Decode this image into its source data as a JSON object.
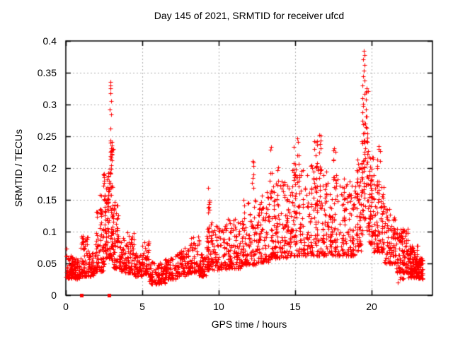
{
  "chart_data": {
    "type": "scatter",
    "title": "Day 145 of 2021, SRMTID for receiver ufcd",
    "xlabel": "GPS time / hours",
    "ylabel": "SRMTID / TECUs",
    "xlim": [
      0,
      24
    ],
    "ylim": [
      0,
      0.4
    ],
    "xticks": [
      0,
      5,
      10,
      15,
      20
    ],
    "yticks": [
      0,
      0.05,
      0.1,
      0.15,
      0.2,
      0.25,
      0.3,
      0.35,
      0.4
    ],
    "xtick_labels": [
      "0",
      "5",
      "10",
      "15",
      "20"
    ],
    "ytick_labels": [
      "0",
      "0.05",
      "0.1",
      "0.15",
      "0.2",
      "0.25",
      "0.3",
      "0.35",
      "0.4"
    ],
    "grid": true,
    "grid_style": "dotted",
    "colors": {
      "marker": "#ff0000",
      "grid": "#b0b0b0",
      "axis": "#000000",
      "background": "#ffffff",
      "text": "#000000"
    },
    "series": [
      {
        "name": "srmtid-points",
        "marker": "+",
        "color": "#ff0000",
        "envelope_format": [
          "t_start_h",
          "t_end_h",
          "count",
          "y_min_tecu",
          "y_max_tecu",
          "skew_power"
        ],
        "envelope": [
          [
            0.0,
            0.5,
            70,
            0.027,
            0.062,
            1.6
          ],
          [
            0.5,
            0.95,
            60,
            0.026,
            0.058,
            1.6
          ],
          [
            0.95,
            1.45,
            70,
            0.03,
            0.096,
            1.8
          ],
          [
            1.05,
            1.2,
            5,
            0.08,
            0.097,
            1.0
          ],
          [
            1.45,
            1.95,
            60,
            0.03,
            0.07,
            1.7
          ],
          [
            1.95,
            2.45,
            70,
            0.038,
            0.135,
            1.8
          ],
          [
            2.2,
            2.3,
            5,
            0.12,
            0.158,
            1.0
          ],
          [
            2.45,
            2.8,
            75,
            0.048,
            0.195,
            1.4
          ],
          [
            2.8,
            3.1,
            80,
            0.055,
            0.25,
            1.5
          ],
          [
            3.1,
            3.5,
            65,
            0.042,
            0.15,
            1.8
          ],
          [
            3.5,
            4.0,
            60,
            0.035,
            0.092,
            1.7
          ],
          [
            4.0,
            4.45,
            55,
            0.035,
            0.1,
            1.8
          ],
          [
            4.45,
            5.0,
            60,
            0.03,
            0.066,
            1.6
          ],
          [
            5.0,
            5.45,
            55,
            0.033,
            0.085,
            1.8
          ],
          [
            5.45,
            6.5,
            95,
            0.018,
            0.052,
            1.4
          ],
          [
            6.5,
            7.2,
            70,
            0.025,
            0.06,
            1.5
          ],
          [
            7.2,
            8.0,
            80,
            0.03,
            0.076,
            1.6
          ],
          [
            8.0,
            8.7,
            75,
            0.035,
            0.096,
            1.7
          ],
          [
            8.7,
            9.2,
            50,
            0.03,
            0.066,
            1.5
          ],
          [
            9.2,
            9.55,
            55,
            0.04,
            0.12,
            1.8
          ],
          [
            9.3,
            9.45,
            10,
            0.1,
            0.18,
            1.0
          ],
          [
            9.55,
            10.5,
            90,
            0.04,
            0.11,
            1.8
          ],
          [
            10.5,
            11.5,
            100,
            0.042,
            0.125,
            1.8
          ],
          [
            11.5,
            12.5,
            105,
            0.048,
            0.155,
            1.8
          ],
          [
            12.2,
            12.3,
            6,
            0.15,
            0.212,
            1.0
          ],
          [
            12.5,
            13.5,
            105,
            0.052,
            0.165,
            1.8
          ],
          [
            13.35,
            13.5,
            8,
            0.15,
            0.24,
            1.0
          ],
          [
            13.5,
            14.5,
            110,
            0.058,
            0.18,
            1.8
          ],
          [
            13.8,
            13.95,
            7,
            0.14,
            0.205,
            1.0
          ],
          [
            14.5,
            15.5,
            110,
            0.062,
            0.2,
            1.8
          ],
          [
            14.9,
            15.3,
            14,
            0.17,
            0.25,
            1.0
          ],
          [
            15.5,
            16.8,
            135,
            0.062,
            0.205,
            1.8
          ],
          [
            16.25,
            16.45,
            10,
            0.18,
            0.25,
            1.0
          ],
          [
            16.55,
            16.7,
            8,
            0.17,
            0.255,
            1.0
          ],
          [
            16.8,
            18.0,
            125,
            0.062,
            0.195,
            1.8
          ],
          [
            17.5,
            17.7,
            9,
            0.18,
            0.26,
            1.0
          ],
          [
            18.0,
            19.0,
            110,
            0.062,
            0.185,
            1.8
          ],
          [
            19.0,
            19.35,
            55,
            0.07,
            0.215,
            1.6
          ],
          [
            19.35,
            19.8,
            85,
            0.095,
            0.33,
            1.3
          ],
          [
            19.8,
            20.15,
            60,
            0.08,
            0.22,
            1.6
          ],
          [
            20.15,
            20.8,
            85,
            0.068,
            0.175,
            1.7
          ],
          [
            20.35,
            20.6,
            10,
            0.15,
            0.235,
            1.0
          ],
          [
            20.8,
            21.6,
            90,
            0.05,
            0.14,
            1.7
          ],
          [
            21.6,
            22.4,
            115,
            0.035,
            0.105,
            1.6
          ],
          [
            21.7,
            22.2,
            6,
            0.02,
            0.03,
            1.0
          ],
          [
            22.4,
            23.05,
            125,
            0.028,
            0.08,
            1.5
          ],
          [
            23.05,
            23.35,
            60,
            0.026,
            0.062,
            1.4
          ]
        ],
        "notable_points": [
          [
            0.05,
            0.073
          ],
          [
            2.9,
            0.336
          ],
          [
            2.92,
            0.33
          ],
          [
            2.93,
            0.326
          ],
          [
            2.91,
            0.318
          ],
          [
            2.95,
            0.306
          ],
          [
            2.89,
            0.292
          ],
          [
            2.96,
            0.284
          ],
          [
            2.94,
            0.262
          ],
          [
            12.25,
            0.211
          ],
          [
            19.5,
            0.385
          ],
          [
            19.53,
            0.378
          ],
          [
            19.48,
            0.371
          ],
          [
            19.55,
            0.362
          ],
          [
            19.51,
            0.353
          ],
          [
            19.46,
            0.344
          ],
          [
            19.57,
            0.338
          ]
        ]
      },
      {
        "name": "gap-flag-squares",
        "marker": "square",
        "color": "#ff0000",
        "points": [
          [
            1.02,
            0
          ],
          [
            2.83,
            0
          ]
        ]
      }
    ]
  }
}
